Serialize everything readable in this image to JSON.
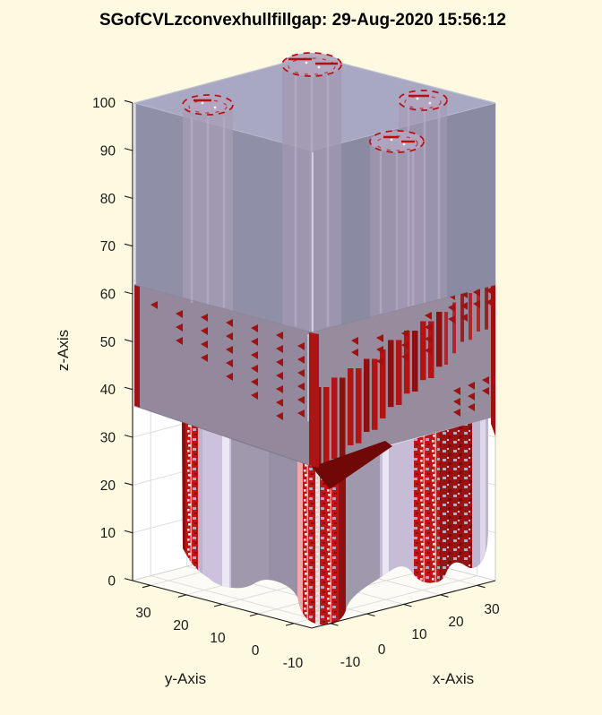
{
  "figure": {
    "background_color": "#FEF9E1",
    "title": "SGofCVLzconvexhullfillgap: 29-Aug-2020 15:56:12"
  },
  "chart_data": {
    "type": "3d-mesh",
    "title": "SGofCVLzconvexhullfillgap: 29-Aug-2020 15:56:12",
    "xlabel": "x-Axis",
    "ylabel": "y-Axis",
    "zlabel": "z-Axis",
    "xticks": [
      -10,
      0,
      10,
      20,
      30
    ],
    "yticks": [
      30,
      20,
      10,
      0,
      -10
    ],
    "zticks": [
      0,
      10,
      20,
      30,
      40,
      50,
      60,
      70,
      80,
      90,
      100
    ],
    "xlim": [
      -15,
      35
    ],
    "ylim": [
      -15,
      35
    ],
    "zlim": [
      0,
      100
    ],
    "grid": true,
    "view": "3d perspective, x-axis to lower-right, y-axis to lower-left, z vertical",
    "components": [
      {
        "name": "upper-hull-block",
        "z_range": [
          62,
          100
        ],
        "description": "semi-transparent gray-blue rectangular slab spanning the full x-y range",
        "color": "#8F8FA7"
      },
      {
        "name": "embedded-cylinders",
        "count": 4,
        "description": "vertical cylinders seen through the transparent hull; tops at z=100 ringed with dashed dark-red mesh marks",
        "color": "#B2A5BF"
      },
      {
        "name": "mid-shell",
        "z_range": [
          37,
          62
        ],
        "description": "opaque mauve shell with columns of small dark-red fill-gap triangles; dense stepped diagonal red band on the +x face; red strips along silhouette edges",
        "color": "#94899C"
      },
      {
        "name": "lower-columns",
        "z_range": [
          0,
          37
        ],
        "description": "red speckled cylindrical columns and translucent lavender-gray walls with filleted (concave) bases on the white gridded floor",
        "color": "#C01818"
      }
    ],
    "colors": {
      "background": "#FEF9E1",
      "wall": "#FFFFFF",
      "grid_line": "#DEDEDE",
      "hull_top": "#A8A8C2",
      "hull_left_face": "#8F8FA7",
      "hull_right_face": "#8A8AA2",
      "mid_left_face": "#94899C",
      "mid_right_face": "#978C9E",
      "mesh_red": "#B01212",
      "dark_red": "#8B0E0E",
      "cylinder_lavender": "#CCC2DD",
      "axis_text": "#1a1a1a"
    }
  }
}
